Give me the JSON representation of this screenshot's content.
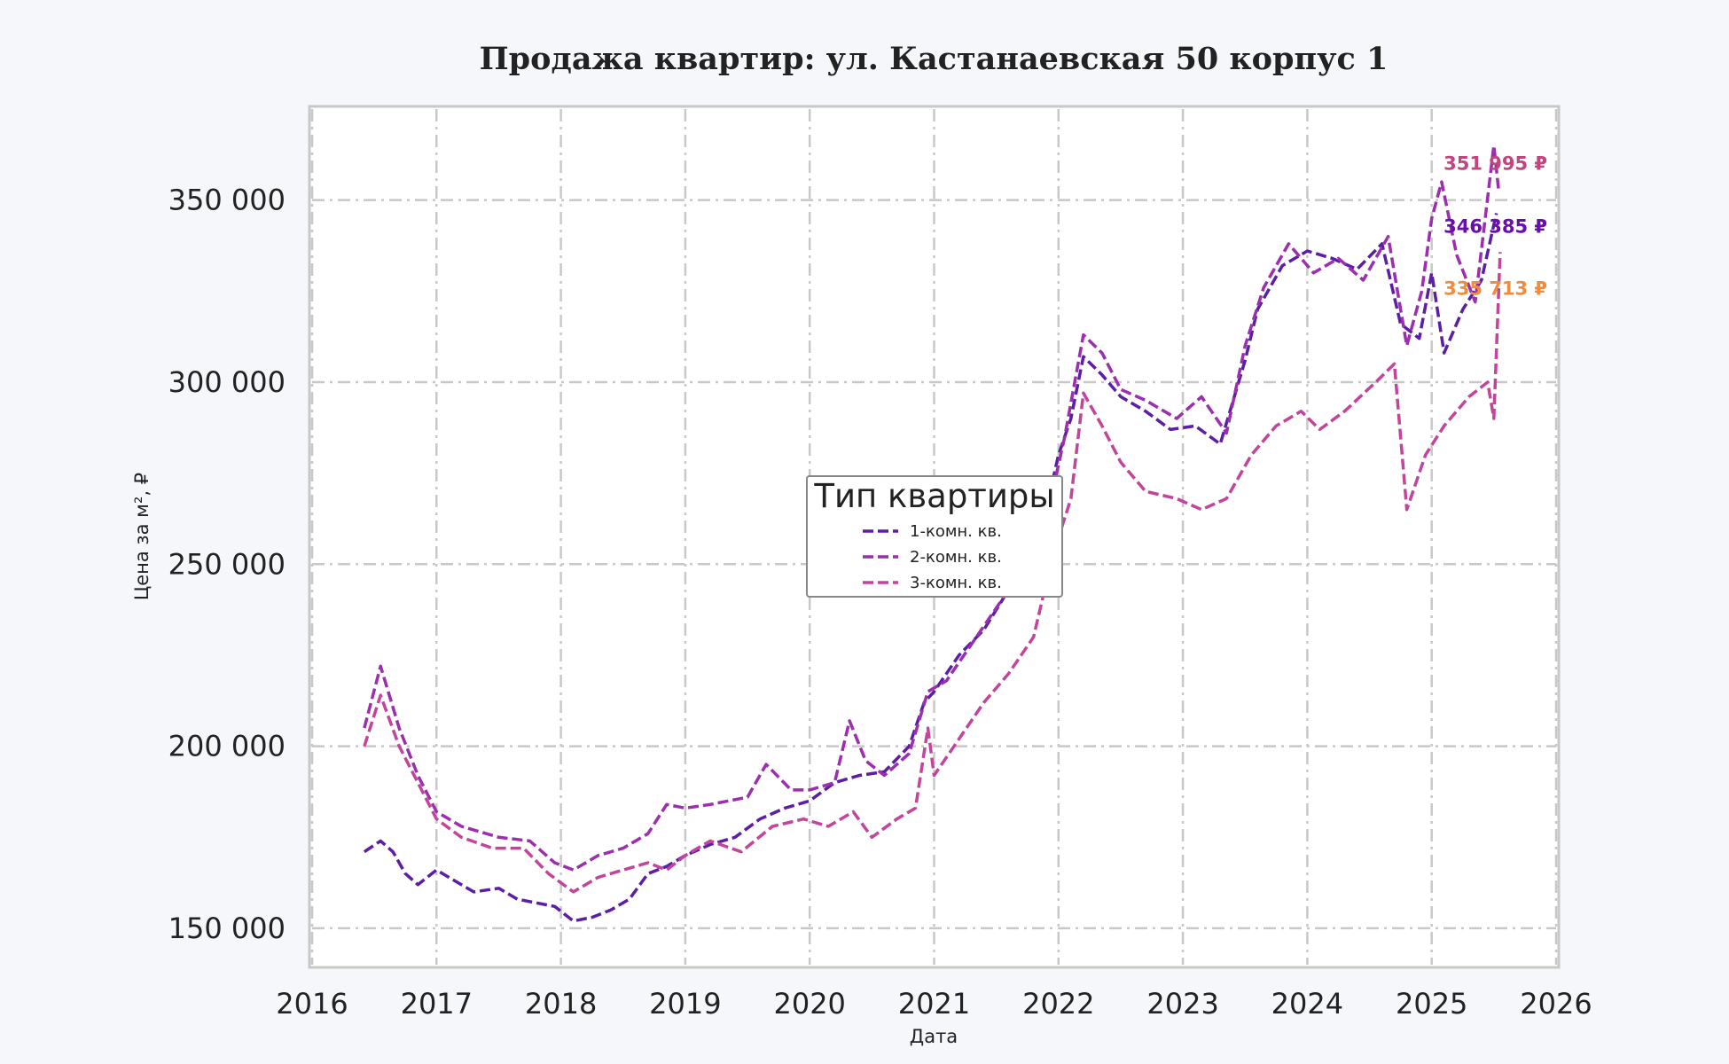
{
  "chart_data": {
    "type": "line",
    "title": "Продажа квартир: ул. Кастанаевская 50 корпус 1",
    "xlabel": "Дата",
    "ylabel": "Цена за м², ₽",
    "xlim": [
      2016,
      2026
    ],
    "ylim": [
      140000,
      375000
    ],
    "x_ticks": [
      "2016",
      "2017",
      "2018",
      "2019",
      "2020",
      "2021",
      "2022",
      "2023",
      "2024",
      "2025",
      "2026"
    ],
    "y_ticks": [
      {
        "value": 150000,
        "label": "150 000"
      },
      {
        "value": 200000,
        "label": "200 000"
      },
      {
        "value": 250000,
        "label": "250 000"
      },
      {
        "value": 300000,
        "label": "300 000"
      },
      {
        "value": 350000,
        "label": "350 000"
      }
    ],
    "grid": true,
    "line_style": "dashed",
    "legend": {
      "title": "Тип квартиры",
      "placement": "center"
    },
    "series": [
      {
        "name": "1-комн. кв.",
        "color": "#5b1fa6",
        "end_label": "346 385 ₽",
        "end_label_color": "#6a0dad",
        "points": [
          [
            2016.42,
            171000
          ],
          [
            2016.55,
            174000
          ],
          [
            2016.65,
            171000
          ],
          [
            2016.75,
            165000
          ],
          [
            2016.85,
            162000
          ],
          [
            2017.0,
            166000
          ],
          [
            2017.15,
            163000
          ],
          [
            2017.3,
            160000
          ],
          [
            2017.5,
            161000
          ],
          [
            2017.65,
            158000
          ],
          [
            2017.8,
            157000
          ],
          [
            2017.95,
            156000
          ],
          [
            2018.1,
            152000
          ],
          [
            2018.25,
            153000
          ],
          [
            2018.4,
            155000
          ],
          [
            2018.55,
            158000
          ],
          [
            2018.7,
            165000
          ],
          [
            2018.85,
            167000
          ],
          [
            2019.0,
            170000
          ],
          [
            2019.2,
            173000
          ],
          [
            2019.4,
            175000
          ],
          [
            2019.6,
            180000
          ],
          [
            2019.8,
            183000
          ],
          [
            2020.0,
            185000
          ],
          [
            2020.2,
            190000
          ],
          [
            2020.4,
            192000
          ],
          [
            2020.6,
            193000
          ],
          [
            2020.8,
            200000
          ],
          [
            2020.92,
            212000
          ],
          [
            2021.0,
            215000
          ],
          [
            2021.2,
            225000
          ],
          [
            2021.4,
            232000
          ],
          [
            2021.6,
            243000
          ],
          [
            2021.8,
            250000
          ],
          [
            2022.0,
            280000
          ],
          [
            2022.1,
            290000
          ],
          [
            2022.2,
            307000
          ],
          [
            2022.35,
            302000
          ],
          [
            2022.5,
            296000
          ],
          [
            2022.7,
            292000
          ],
          [
            2022.9,
            287000
          ],
          [
            2023.1,
            288000
          ],
          [
            2023.3,
            283000
          ],
          [
            2023.5,
            306000
          ],
          [
            2023.6,
            320000
          ],
          [
            2023.8,
            332000
          ],
          [
            2024.0,
            336000
          ],
          [
            2024.2,
            334000
          ],
          [
            2024.4,
            331000
          ],
          [
            2024.6,
            338000
          ],
          [
            2024.75,
            316000
          ],
          [
            2024.9,
            312000
          ],
          [
            2025.0,
            330000
          ],
          [
            2025.1,
            308000
          ],
          [
            2025.25,
            320000
          ],
          [
            2025.4,
            328000
          ],
          [
            2025.52,
            346385
          ]
        ]
      },
      {
        "name": "2-комн. кв.",
        "color": "#9b2fae",
        "end_label": "351 995 ₽",
        "end_label_color": "#c2457e",
        "points": [
          [
            2016.42,
            205000
          ],
          [
            2016.55,
            222000
          ],
          [
            2016.7,
            205000
          ],
          [
            2016.85,
            192000
          ],
          [
            2017.0,
            182000
          ],
          [
            2017.2,
            178000
          ],
          [
            2017.5,
            175000
          ],
          [
            2017.75,
            174000
          ],
          [
            2017.95,
            168000
          ],
          [
            2018.1,
            166000
          ],
          [
            2018.3,
            170000
          ],
          [
            2018.5,
            172000
          ],
          [
            2018.7,
            176000
          ],
          [
            2018.85,
            184000
          ],
          [
            2019.0,
            183000
          ],
          [
            2019.2,
            184000
          ],
          [
            2019.5,
            186000
          ],
          [
            2019.65,
            195000
          ],
          [
            2019.85,
            188000
          ],
          [
            2020.0,
            188000
          ],
          [
            2020.2,
            190000
          ],
          [
            2020.32,
            207000
          ],
          [
            2020.45,
            196000
          ],
          [
            2020.6,
            192000
          ],
          [
            2020.8,
            198000
          ],
          [
            2020.95,
            215000
          ],
          [
            2021.1,
            218000
          ],
          [
            2021.3,
            228000
          ],
          [
            2021.5,
            238000
          ],
          [
            2021.7,
            248000
          ],
          [
            2021.9,
            262000
          ],
          [
            2022.05,
            285000
          ],
          [
            2022.2,
            313000
          ],
          [
            2022.35,
            308000
          ],
          [
            2022.5,
            298000
          ],
          [
            2022.7,
            295000
          ],
          [
            2022.95,
            290000
          ],
          [
            2023.15,
            296000
          ],
          [
            2023.35,
            286000
          ],
          [
            2023.5,
            310000
          ],
          [
            2023.65,
            326000
          ],
          [
            2023.85,
            338000
          ],
          [
            2024.05,
            330000
          ],
          [
            2024.25,
            334000
          ],
          [
            2024.45,
            328000
          ],
          [
            2024.65,
            340000
          ],
          [
            2024.8,
            310000
          ],
          [
            2024.92,
            325000
          ],
          [
            2025.0,
            345000
          ],
          [
            2025.08,
            355000
          ],
          [
            2025.2,
            335000
          ],
          [
            2025.35,
            322000
          ],
          [
            2025.5,
            365000
          ],
          [
            2025.54,
            351995
          ]
        ]
      },
      {
        "name": "3-комн. кв.",
        "color": "#c2459b",
        "end_label": "335 713 ₽",
        "end_label_color": "#f08c3c",
        "points": [
          [
            2016.42,
            200000
          ],
          [
            2016.55,
            214000
          ],
          [
            2016.7,
            200000
          ],
          [
            2016.85,
            190000
          ],
          [
            2017.0,
            180000
          ],
          [
            2017.2,
            175000
          ],
          [
            2017.45,
            172000
          ],
          [
            2017.7,
            172000
          ],
          [
            2017.9,
            165000
          ],
          [
            2018.1,
            160000
          ],
          [
            2018.3,
            164000
          ],
          [
            2018.5,
            166000
          ],
          [
            2018.7,
            168000
          ],
          [
            2018.85,
            166000
          ],
          [
            2019.0,
            170000
          ],
          [
            2019.2,
            174000
          ],
          [
            2019.45,
            171000
          ],
          [
            2019.7,
            178000
          ],
          [
            2019.95,
            180000
          ],
          [
            2020.15,
            178000
          ],
          [
            2020.35,
            182000
          ],
          [
            2020.5,
            175000
          ],
          [
            2020.7,
            180000
          ],
          [
            2020.85,
            183000
          ],
          [
            2020.95,
            205000
          ],
          [
            2021.0,
            192000
          ],
          [
            2021.2,
            202000
          ],
          [
            2021.4,
            212000
          ],
          [
            2021.6,
            220000
          ],
          [
            2021.8,
            230000
          ],
          [
            2021.95,
            252000
          ],
          [
            2022.1,
            268000
          ],
          [
            2022.2,
            297000
          ],
          [
            2022.35,
            288000
          ],
          [
            2022.5,
            278000
          ],
          [
            2022.7,
            270000
          ],
          [
            2022.95,
            268000
          ],
          [
            2023.15,
            265000
          ],
          [
            2023.35,
            268000
          ],
          [
            2023.55,
            280000
          ],
          [
            2023.75,
            288000
          ],
          [
            2023.95,
            292000
          ],
          [
            2024.1,
            287000
          ],
          [
            2024.3,
            292000
          ],
          [
            2024.55,
            300000
          ],
          [
            2024.7,
            305000
          ],
          [
            2024.8,
            265000
          ],
          [
            2024.95,
            280000
          ],
          [
            2025.1,
            288000
          ],
          [
            2025.3,
            296000
          ],
          [
            2025.45,
            300000
          ],
          [
            2025.5,
            290000
          ],
          [
            2025.55,
            335713
          ]
        ]
      }
    ]
  }
}
